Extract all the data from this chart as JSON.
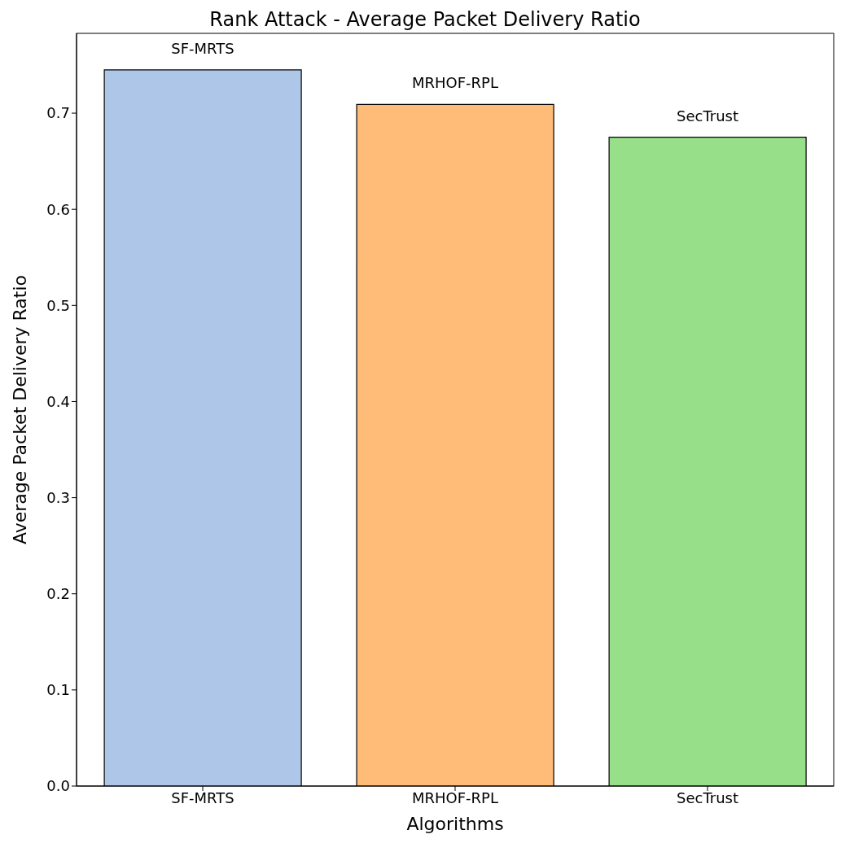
{
  "chart_data": {
    "type": "bar",
    "title": "Rank Attack - Average Packet Delivery Ratio",
    "xlabel": "Algorithms",
    "ylabel": "Average Packet Delivery Ratio",
    "categories": [
      "SF-MRTS",
      "MRHOF-RPL",
      "SecTrust"
    ],
    "values": [
      0.745,
      0.709,
      0.675
    ],
    "colors": [
      "#aec7e8",
      "#ffbb78",
      "#98df8a"
    ],
    "ylim": [
      0,
      0.783
    ],
    "yticks": [
      {
        "value": 0,
        "label": "0.0"
      },
      0.1,
      0.2,
      0.3,
      0.4,
      0.5,
      0.6,
      0.7
    ],
    "annotations": [
      {
        "text": "SF-MRTS",
        "x": "SF-MRTS",
        "y": 0.745
      },
      {
        "text": "MRHOF-RPL",
        "x": "MRHOF-RPL",
        "y": 0.709
      },
      {
        "text": "SecTrust",
        "x": "SecTrust",
        "y": 0.675
      }
    ],
    "grid": false,
    "legend": false
  }
}
